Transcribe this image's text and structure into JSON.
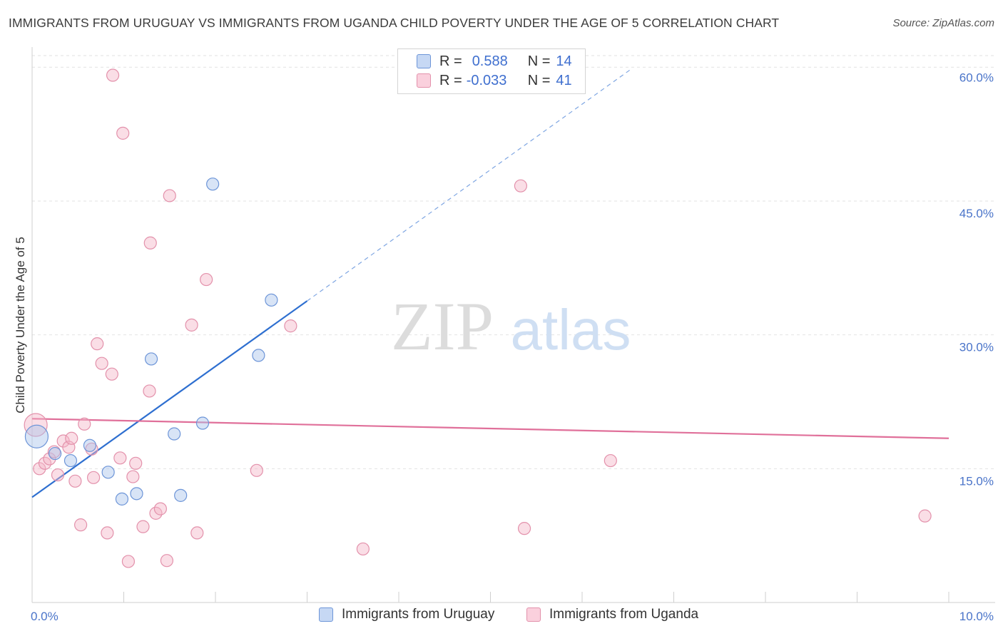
{
  "header": {
    "title": "IMMIGRANTS FROM URUGUAY VS IMMIGRANTS FROM UGANDA CHILD POVERTY UNDER THE AGE OF 5 CORRELATION CHART",
    "source": "Source: ZipAtlas.com"
  },
  "legend": {
    "rows": [
      {
        "r_label": "R =",
        "r_value": "0.588",
        "n_label": "N =",
        "n_value": "14",
        "color": "#a9c4ec"
      },
      {
        "r_label": "R =",
        "r_value": "-0.033",
        "n_label": "N =",
        "n_value": "41",
        "color": "#f4b6c8"
      }
    ]
  },
  "watermark": {
    "zip": "ZIP",
    "atlas": "atlas"
  },
  "chart_data": {
    "type": "scatter",
    "ylabel": "Child Poverty Under the Age of 5",
    "xlim": [
      0,
      10
    ],
    "ylim": [
      0,
      60
    ],
    "x_tick_labels": [
      "0.0%",
      "10.0%"
    ],
    "y_tick_values": [
      15,
      30,
      45,
      60
    ],
    "y_tick_labels": [
      "15.0%",
      "30.0%",
      "45.0%",
      "60.0%"
    ],
    "grid": true,
    "series": [
      {
        "name": "Immigrants from Uruguay",
        "color": "#a9c4ec",
        "stroke": "#6d95d8",
        "line_color": "#2e6fd0",
        "trend": {
          "x1": 0.0,
          "y1": 11.8,
          "x2": 3.0,
          "y2": 33.8,
          "dash_to_x": 6.55,
          "dash_to_y": 59.9
        },
        "points": [
          {
            "x": 0.05,
            "y": 18.6,
            "big": true
          },
          {
            "x": 0.25,
            "y": 16.7
          },
          {
            "x": 0.42,
            "y": 15.9
          },
          {
            "x": 0.63,
            "y": 17.6
          },
          {
            "x": 0.83,
            "y": 14.6
          },
          {
            "x": 0.98,
            "y": 11.6
          },
          {
            "x": 1.14,
            "y": 12.2
          },
          {
            "x": 1.3,
            "y": 27.3
          },
          {
            "x": 1.55,
            "y": 18.9
          },
          {
            "x": 1.62,
            "y": 12.0
          },
          {
            "x": 1.86,
            "y": 20.1
          },
          {
            "x": 1.97,
            "y": 46.9
          },
          {
            "x": 2.47,
            "y": 27.7
          },
          {
            "x": 2.61,
            "y": 33.9
          }
        ]
      },
      {
        "name": "Immigrants from Uganda",
        "color": "#f4b6c8",
        "stroke": "#e391ab",
        "line_color": "#e0709a",
        "trend": {
          "x1": 0.0,
          "y1": 20.6,
          "x2": 10.0,
          "y2": 18.4
        },
        "points": [
          {
            "x": 0.04,
            "y": 19.9,
            "big": true
          },
          {
            "x": 0.08,
            "y": 15.0
          },
          {
            "x": 0.14,
            "y": 15.6
          },
          {
            "x": 0.19,
            "y": 16.1
          },
          {
            "x": 0.24,
            "y": 16.9
          },
          {
            "x": 0.28,
            "y": 14.3
          },
          {
            "x": 0.34,
            "y": 18.1
          },
          {
            "x": 0.4,
            "y": 17.4
          },
          {
            "x": 0.43,
            "y": 18.4
          },
          {
            "x": 0.47,
            "y": 13.6
          },
          {
            "x": 0.53,
            "y": 8.7
          },
          {
            "x": 0.57,
            "y": 20.0
          },
          {
            "x": 0.65,
            "y": 17.2
          },
          {
            "x": 0.67,
            "y": 14.0
          },
          {
            "x": 0.71,
            "y": 29.0
          },
          {
            "x": 0.76,
            "y": 26.8
          },
          {
            "x": 0.82,
            "y": 7.8
          },
          {
            "x": 0.87,
            "y": 25.6
          },
          {
            "x": 0.88,
            "y": 59.1
          },
          {
            "x": 0.96,
            "y": 16.2
          },
          {
            "x": 0.99,
            "y": 52.6
          },
          {
            "x": 1.05,
            "y": 4.6
          },
          {
            "x": 1.1,
            "y": 14.1
          },
          {
            "x": 1.13,
            "y": 15.6
          },
          {
            "x": 1.21,
            "y": 8.5
          },
          {
            "x": 1.28,
            "y": 23.7
          },
          {
            "x": 1.29,
            "y": 40.3
          },
          {
            "x": 1.35,
            "y": 10.0
          },
          {
            "x": 1.4,
            "y": 10.5
          },
          {
            "x": 1.47,
            "y": 4.7
          },
          {
            "x": 1.5,
            "y": 45.6
          },
          {
            "x": 1.74,
            "y": 31.1
          },
          {
            "x": 1.8,
            "y": 7.8
          },
          {
            "x": 1.9,
            "y": 36.2
          },
          {
            "x": 2.45,
            "y": 14.8
          },
          {
            "x": 2.82,
            "y": 31.0
          },
          {
            "x": 3.61,
            "y": 6.0
          },
          {
            "x": 5.33,
            "y": 46.7
          },
          {
            "x": 5.37,
            "y": 8.3
          },
          {
            "x": 6.31,
            "y": 15.9
          },
          {
            "x": 9.74,
            "y": 9.7
          }
        ]
      }
    ]
  }
}
